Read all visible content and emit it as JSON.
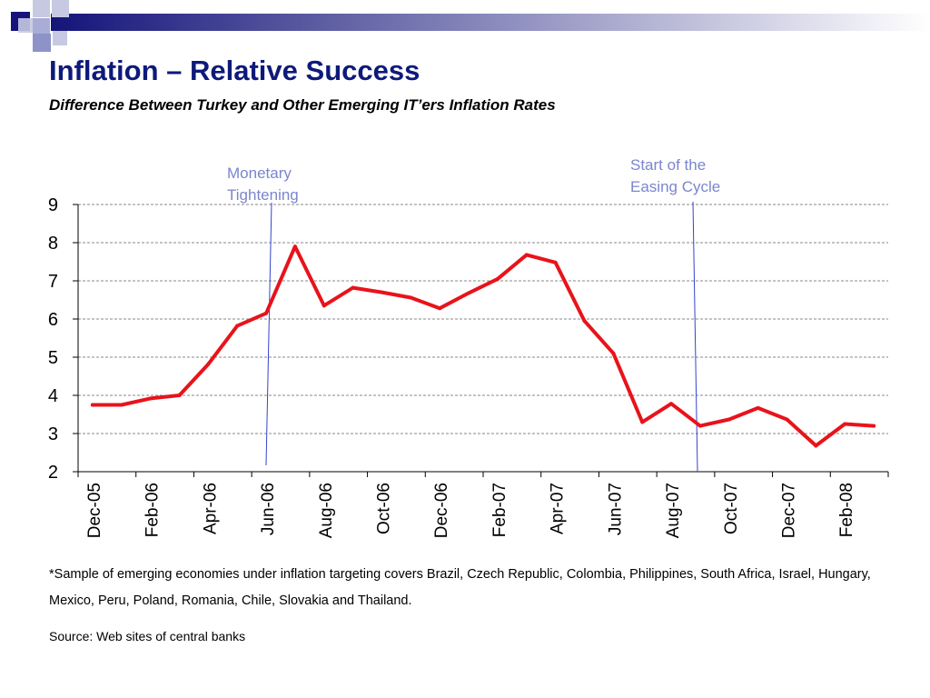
{
  "header": {
    "title": "Inflation – Relative Success",
    "subtitle": "Difference Between Turkey and Other Emerging IT’ers Inflation Rates"
  },
  "colors": {
    "title": "#0d1a7a",
    "line": "#e8131b",
    "marker_line": "#3344cc",
    "annotation_text": "#7b86cc",
    "grid": "#888888",
    "decor_dark": "#14147a",
    "decor_mid": "#8d92c8",
    "decor_light": "#c7c9e3"
  },
  "chart_data": {
    "type": "line",
    "title": "",
    "xlabel": "",
    "ylabel": "",
    "ylim": [
      2,
      9
    ],
    "yticks": [
      2,
      3,
      4,
      5,
      6,
      7,
      8,
      9
    ],
    "grid": true,
    "x": [
      "Dec-05",
      "Jan-06",
      "Feb-06",
      "Mar-06",
      "Apr-06",
      "May-06",
      "Jun-06",
      "Jul-06",
      "Aug-06",
      "Sep-06",
      "Oct-06",
      "Nov-06",
      "Dec-06",
      "Jan-07",
      "Feb-07",
      "Mar-07",
      "Apr-07",
      "May-07",
      "Jun-07",
      "Jul-07",
      "Aug-07",
      "Sep-07",
      "Oct-07",
      "Nov-07",
      "Dec-07",
      "Jan-08",
      "Feb-08",
      "Mar-08"
    ],
    "xtick_labels": [
      "Dec-05",
      "Feb-06",
      "Apr-06",
      "Jun-06",
      "Aug-06",
      "Oct-06",
      "Dec-06",
      "Feb-07",
      "Apr-07",
      "Jun-07",
      "Aug-07",
      "Oct-07",
      "Dec-07",
      "Feb-08"
    ],
    "series": [
      {
        "values": [
          3.75,
          3.75,
          3.92,
          4.0,
          4.82,
          5.82,
          6.15,
          7.9,
          6.35,
          6.82,
          6.7,
          6.56,
          6.28,
          6.68,
          7.05,
          7.68,
          7.48,
          5.95,
          5.1,
          3.3,
          3.78,
          3.2,
          3.37,
          3.67,
          3.37,
          2.68,
          3.25,
          3.2
        ]
      }
    ],
    "annotations": [
      {
        "text_lines": [
          "Monetary",
          "Tightening"
        ],
        "at": "Jun-06"
      },
      {
        "text_lines": [
          "Start of the",
          "Easing Cycle"
        ],
        "at": "Sep-07"
      }
    ]
  },
  "footnote": "*Sample of emerging economies under inflation targeting covers Brazil, Czech Republic, Colombia, Philippines, South Africa, Israel, Hungary, Mexico, Peru, Poland, Romania, Chile, Slovakia and Thailand.",
  "source": "Source: Web sites of central banks"
}
